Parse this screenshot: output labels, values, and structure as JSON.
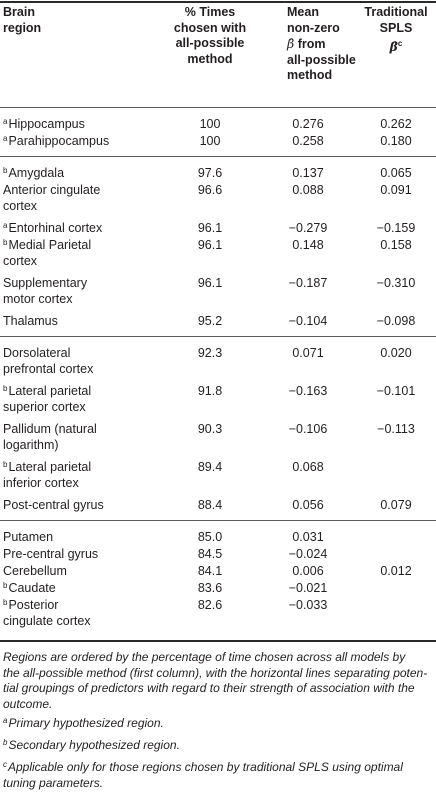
{
  "headers": {
    "region": [
      "Brain",
      "region"
    ],
    "pct": [
      "% Times",
      "chosen with",
      "all-possible",
      "method"
    ],
    "mean_line1": "Mean",
    "mean_line2": "non-zero",
    "mean_beta": "β̂",
    "mean_from": "from",
    "mean_line4": "all-possible",
    "mean_line5": "method",
    "trad_line1": "Traditional",
    "trad_line2": "SPLS",
    "trad_beta": "β̂",
    "trad_sup": "c"
  },
  "rows": [
    {
      "marker": "a",
      "region": [
        "Hippocampus"
      ],
      "pct": "100",
      "mean": "0.276",
      "trad": "0.262"
    },
    {
      "marker": "a",
      "region": [
        "Parahippocampus"
      ],
      "pct": "100",
      "mean": "0.258",
      "trad": "0.180"
    },
    {
      "marker": "b",
      "region": [
        "Amygdala"
      ],
      "pct": "97.6",
      "mean": "0.137",
      "trad": "0.065"
    },
    {
      "marker": "",
      "region": [
        "Anterior cingulate",
        "cortex"
      ],
      "pct": "96.6",
      "mean": "0.088",
      "trad": "0.091"
    },
    {
      "marker": "a",
      "region": [
        "Entorhinal cortex"
      ],
      "pct": "96.1",
      "mean": "−0.279",
      "trad": "−0.159"
    },
    {
      "marker": "b",
      "region": [
        "Medial Parietal",
        "cortex"
      ],
      "pct": "96.1",
      "mean": "0.148",
      "trad": "0.158"
    },
    {
      "marker": "",
      "region": [
        "Supplementary",
        "motor cortex"
      ],
      "pct": "96.1",
      "mean": "−0.187",
      "trad": "−0.310"
    },
    {
      "marker": "",
      "region": [
        "Thalamus"
      ],
      "pct": "95.2",
      "mean": "−0.104",
      "trad": "−0.098"
    },
    {
      "marker": "",
      "region": [
        "Dorsolateral",
        "prefrontal cortex"
      ],
      "pct": "92.3",
      "mean": "0.071",
      "trad": "0.020"
    },
    {
      "marker": "b",
      "region": [
        "Lateral parietal",
        "superior cortex"
      ],
      "pct": "91.8",
      "mean": "−0.163",
      "trad": "−0.101"
    },
    {
      "marker": "",
      "region": [
        "Pallidum (natural",
        "logarithm)"
      ],
      "pct": "90.3",
      "mean": "−0.106",
      "trad": "−0.113"
    },
    {
      "marker": "b",
      "region": [
        "Lateral parietal",
        "inferior cortex"
      ],
      "pct": "89.4",
      "mean": "0.068",
      "trad": ""
    },
    {
      "marker": "",
      "region": [
        "Post-central gyrus"
      ],
      "pct": "88.4",
      "mean": "0.056",
      "trad": "0.079"
    },
    {
      "marker": "",
      "region": [
        "Putamen"
      ],
      "pct": "85.0",
      "mean": "0.031",
      "trad": ""
    },
    {
      "marker": "",
      "region": [
        "Pre-central gyrus"
      ],
      "pct": "84.5",
      "mean": "−0.024",
      "trad": ""
    },
    {
      "marker": "",
      "region": [
        "Cerebellum"
      ],
      "pct": "84.1",
      "mean": "0.006",
      "trad": "0.012"
    },
    {
      "marker": "b",
      "region": [
        "Caudate"
      ],
      "pct": "83.6",
      "mean": "−0.021",
      "trad": ""
    },
    {
      "marker": "b",
      "region": [
        "Posterior",
        "cingulate cortex"
      ],
      "pct": "82.6",
      "mean": "−0.033",
      "trad": ""
    }
  ],
  "notes": {
    "caption_lines": [
      "Regions are ordered by the percentage of time chosen across all models by",
      "the all-possible method (first column), with the horizontal lines separating poten-",
      "tial groupings of predictors with regard to their strength of association with the",
      "outcome."
    ],
    "footnotes": [
      {
        "marker": "a",
        "lines": [
          "Primary hypothesized region."
        ]
      },
      {
        "marker": "b",
        "lines": [
          "Secondary hypothesized region."
        ]
      },
      {
        "marker": "c",
        "lines": [
          "Applicable only for those regions chosen by traditional SPLS using optimal",
          "tuning parameters."
        ]
      }
    ]
  }
}
